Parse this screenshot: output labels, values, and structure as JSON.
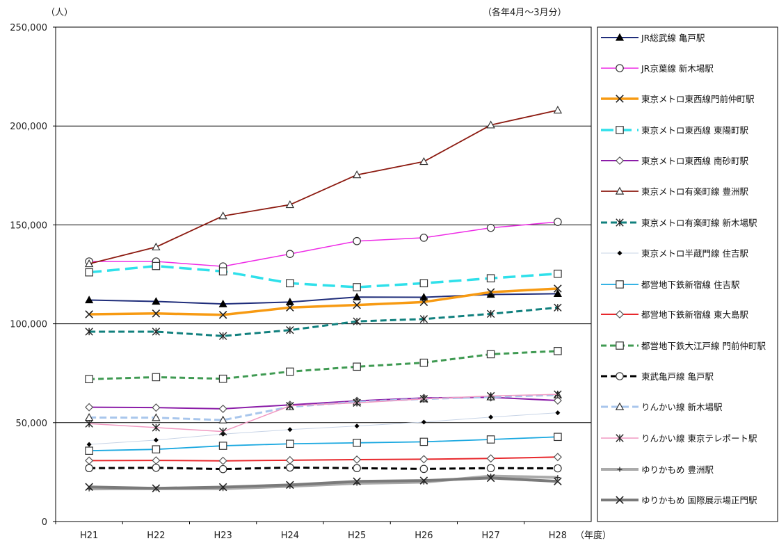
{
  "chart_data": {
    "type": "line",
    "unit_label": "（人）",
    "period_note": "（各年4月〜3月分）",
    "xlabel": "（年度）",
    "categories": [
      "H21",
      "H22",
      "H23",
      "H24",
      "H25",
      "H26",
      "H27",
      "H28"
    ],
    "yticks": [
      "0",
      "50,000",
      "100,000",
      "150,000",
      "200,000",
      "250,000"
    ],
    "ylim": [
      0,
      250000
    ],
    "grid": true,
    "legend_position": "right",
    "series": [
      {
        "name": "JR総武線 亀戸駅",
        "color": "#1f2d7a",
        "dash": "",
        "width": 2,
        "marker": "triangle-filled",
        "values": [
          112000,
          111300,
          110000,
          111000,
          113500,
          113400,
          114800,
          115200
        ]
      },
      {
        "name": "JR京葉線 新木場駅",
        "color": "#ee2be6",
        "dash": "",
        "width": 1.5,
        "marker": "circle-open",
        "values": [
          131500,
          131500,
          129000,
          135300,
          141800,
          143500,
          148500,
          151500
        ]
      },
      {
        "name": "東京メトロ東西線門前仲町駅",
        "color": "#f79a12",
        "dash": "",
        "width": 3.5,
        "marker": "x",
        "values": [
          104800,
          105200,
          104500,
          108200,
          109500,
          111000,
          116000,
          117800
        ]
      },
      {
        "name": "東京メトロ東西線 東陽町駅",
        "color": "#2fe0ea",
        "dash": "18,8",
        "width": 3.5,
        "marker": "square-open",
        "values": [
          126000,
          129200,
          126500,
          120500,
          118500,
          120500,
          123000,
          125300
        ]
      },
      {
        "name": "東京メトロ東西線 南砂町駅",
        "color": "#8b1da8",
        "dash": "",
        "width": 2,
        "marker": "diamond-open",
        "values": [
          57800,
          57600,
          57000,
          59000,
          61000,
          62500,
          62800,
          61200
        ]
      },
      {
        "name": "東京メトロ有楽町線 豊洲駅",
        "color": "#8c1a10",
        "dash": "",
        "width": 1.8,
        "marker": "triangle-open",
        "values": [
          130300,
          138800,
          154500,
          160200,
          175300,
          182000,
          200500,
          208000
        ]
      },
      {
        "name": "東京メトロ有楽町線 新木場駅",
        "color": "#11807e",
        "dash": "9,5",
        "width": 3,
        "marker": "asterisk",
        "values": [
          96000,
          96000,
          93800,
          96800,
          101200,
          102400,
          105000,
          108200
        ]
      },
      {
        "name": "東京メトロ半蔵門線 住吉駅",
        "color": "#c8d4e6",
        "dash": "",
        "width": 1,
        "marker": "diamond-filled",
        "values": [
          39000,
          41200,
          44200,
          46500,
          48300,
          50300,
          52800,
          55000
        ]
      },
      {
        "name": "都営地下鉄新宿線 住吉駅",
        "color": "#1aa8e0",
        "dash": "",
        "width": 1.8,
        "marker": "square-open",
        "values": [
          35800,
          36500,
          38300,
          39300,
          39800,
          40300,
          41500,
          42800
        ]
      },
      {
        "name": "都営地下鉄新宿線 東大島駅",
        "color": "#e8282c",
        "dash": "",
        "width": 2,
        "marker": "diamond-open",
        "values": [
          30800,
          30900,
          30700,
          31000,
          31300,
          31500,
          31900,
          32600
        ]
      },
      {
        "name": "都営地下鉄大江戸線 門前仲町駅",
        "color": "#3f9a52",
        "dash": "8,5",
        "width": 3,
        "marker": "square-open",
        "values": [
          72000,
          73000,
          72200,
          75800,
          78300,
          80300,
          84600,
          86200
        ]
      },
      {
        "name": "東武亀戸線 亀戸駅",
        "color": "#000000",
        "dash": "9,5",
        "width": 3,
        "marker": "circle-open",
        "values": [
          27000,
          27200,
          26500,
          27300,
          27000,
          26600,
          27000,
          26900
        ]
      },
      {
        "name": "りんかい線 新木場駅",
        "color": "#a8c6ec",
        "dash": "10,5",
        "width": 3,
        "marker": "triangle-open",
        "values": [
          52600,
          52500,
          51300,
          58000,
          60500,
          62000,
          63000,
          64000
        ]
      },
      {
        "name": "りんかい線 東京テレポート駅",
        "color": "#f199c2",
        "dash": "",
        "width": 1.5,
        "marker": "asterisk",
        "values": [
          49500,
          47500,
          45500,
          58500,
          60000,
          62000,
          63500,
          64300
        ]
      },
      {
        "name": "ゆりかもめ 豊洲駅",
        "color": "#aaaaaa",
        "dash": "",
        "width": 4,
        "marker": "plus",
        "values": [
          16500,
          16600,
          16600,
          17800,
          19300,
          19900,
          23000,
          22300
        ]
      },
      {
        "name": "ゆりかもめ 国際展示場正門駅",
        "color": "#7a7a7a",
        "dash": "",
        "width": 4,
        "marker": "x",
        "values": [
          17500,
          16800,
          17400,
          18500,
          20300,
          20700,
          22000,
          20300
        ]
      }
    ]
  }
}
